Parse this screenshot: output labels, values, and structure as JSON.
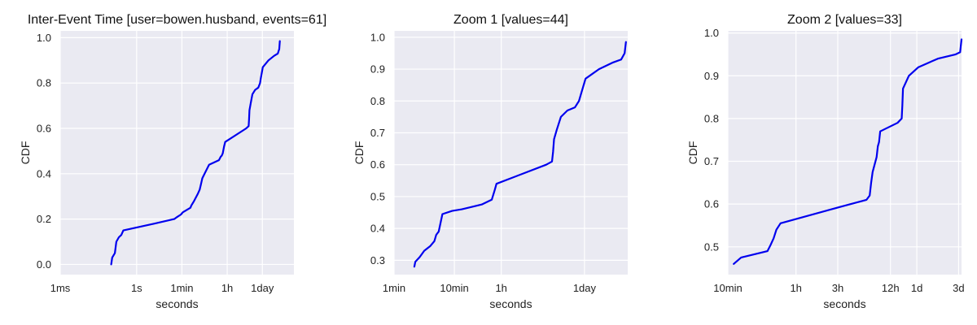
{
  "chart_data": [
    {
      "type": "line",
      "title": "Inter-Event Time [user=bowen.husband, events=61]",
      "xlabel": "seconds",
      "ylabel": "CDF",
      "xscale": "log",
      "xlim": [
        0.001,
        1500000
      ],
      "ylim": [
        -0.045,
        1.03
      ],
      "grid": true,
      "color": "#0000ee",
      "xticks": [
        {
          "value": 0.001,
          "label": "1ms"
        },
        {
          "value": 1,
          "label": "1s"
        },
        {
          "value": 60,
          "label": "1min"
        },
        {
          "value": 3600,
          "label": "1h"
        },
        {
          "value": 86400,
          "label": "1day"
        }
      ],
      "yticks": [
        {
          "value": 0.0,
          "label": "0.0"
        },
        {
          "value": 0.2,
          "label": "0.2"
        },
        {
          "value": 0.4,
          "label": "0.4"
        },
        {
          "value": 0.6,
          "label": "0.6"
        },
        {
          "value": 0.8,
          "label": "0.8"
        },
        {
          "value": 1.0,
          "label": "1.0"
        }
      ],
      "x": [
        0.1,
        0.11,
        0.14,
        0.16,
        0.2,
        0.25,
        0.3,
        5,
        30,
        40,
        55,
        65,
        130,
        140,
        180,
        250,
        300,
        330,
        380,
        700,
        1100,
        1700,
        2000,
        2200,
        2400,
        2700,
        3000,
        20000,
        25000,
        26000,
        27000,
        30000,
        35000,
        45000,
        60000,
        70000,
        75000,
        90000,
        150000,
        250000,
        350000,
        400000,
        420000
      ],
      "y": [
        0.0,
        0.03,
        0.05,
        0.1,
        0.12,
        0.13,
        0.15,
        0.18,
        0.2,
        0.21,
        0.22,
        0.23,
        0.25,
        0.26,
        0.28,
        0.31,
        0.33,
        0.35,
        0.38,
        0.44,
        0.45,
        0.46,
        0.475,
        0.48,
        0.49,
        0.52,
        0.54,
        0.6,
        0.61,
        0.64,
        0.68,
        0.71,
        0.75,
        0.77,
        0.78,
        0.8,
        0.82,
        0.87,
        0.9,
        0.92,
        0.93,
        0.95,
        0.985
      ]
    },
    {
      "type": "line",
      "title": "Zoom 1 [values=44]",
      "xlabel": "seconds",
      "ylabel": "CDF",
      "xscale": "log",
      "xlim": [
        60,
        450000
      ],
      "ylim": [
        0.255,
        1.02
      ],
      "grid": true,
      "color": "#0000ee",
      "xticks": [
        {
          "value": 60,
          "label": "1min"
        },
        {
          "value": 600,
          "label": "10min"
        },
        {
          "value": 3600,
          "label": "1h"
        },
        {
          "value": 86400,
          "label": "1day"
        }
      ],
      "yticks": [
        {
          "value": 0.3,
          "label": "0.3"
        },
        {
          "value": 0.4,
          "label": "0.4"
        },
        {
          "value": 0.5,
          "label": "0.5"
        },
        {
          "value": 0.6,
          "label": "0.6"
        },
        {
          "value": 0.7,
          "label": "0.7"
        },
        {
          "value": 0.8,
          "label": "0.8"
        },
        {
          "value": 0.9,
          "label": "0.9"
        },
        {
          "value": 1.0,
          "label": "1.0"
        }
      ],
      "x": [
        130,
        135,
        160,
        190,
        240,
        280,
        300,
        330,
        380,
        550,
        800,
        1700,
        2500,
        2800,
        3000,
        20000,
        25000,
        26000,
        27000,
        30000,
        35000,
        45000,
        60000,
        70000,
        75000,
        90000,
        150000,
        250000,
        350000,
        400000,
        420000
      ],
      "y": [
        0.28,
        0.295,
        0.31,
        0.33,
        0.345,
        0.36,
        0.38,
        0.39,
        0.445,
        0.455,
        0.46,
        0.475,
        0.49,
        0.52,
        0.54,
        0.6,
        0.61,
        0.64,
        0.68,
        0.71,
        0.75,
        0.77,
        0.78,
        0.8,
        0.82,
        0.87,
        0.9,
        0.92,
        0.93,
        0.95,
        0.985
      ]
    },
    {
      "type": "line",
      "title": "Zoom 2 [values=33]",
      "xlabel": "seconds",
      "ylabel": "CDF",
      "xscale": "log",
      "xlim": [
        600,
        280000
      ],
      "ylim": [
        0.435,
        1.005
      ],
      "grid": true,
      "color": "#0000ee",
      "xticks": [
        {
          "value": 600,
          "label": "10min"
        },
        {
          "value": 3600,
          "label": "1h"
        },
        {
          "value": 10800,
          "label": "3h"
        },
        {
          "value": 43200,
          "label": "12h"
        },
        {
          "value": 86400,
          "label": "1d"
        },
        {
          "value": 259200,
          "label": "3d"
        }
      ],
      "yticks": [
        {
          "value": 0.5,
          "label": "0.5"
        },
        {
          "value": 0.6,
          "label": "0.6"
        },
        {
          "value": 0.7,
          "label": "0.7"
        },
        {
          "value": 0.8,
          "label": "0.8"
        },
        {
          "value": 0.9,
          "label": "0.9"
        },
        {
          "value": 1.0,
          "label": "1.0"
        }
      ],
      "x": [
        700,
        850,
        1700,
        1850,
        2000,
        2150,
        2400,
        10000,
        23000,
        25000,
        26000,
        27000,
        30000,
        31000,
        32000,
        33000,
        52000,
        58000,
        59000,
        60000,
        70000,
        90000,
        150000,
        240000,
        270000,
        280000
      ],
      "y": [
        0.46,
        0.475,
        0.49,
        0.505,
        0.52,
        0.54,
        0.555,
        0.59,
        0.61,
        0.62,
        0.65,
        0.675,
        0.71,
        0.735,
        0.745,
        0.77,
        0.79,
        0.8,
        0.83,
        0.87,
        0.9,
        0.92,
        0.94,
        0.95,
        0.955,
        0.985
      ]
    }
  ]
}
